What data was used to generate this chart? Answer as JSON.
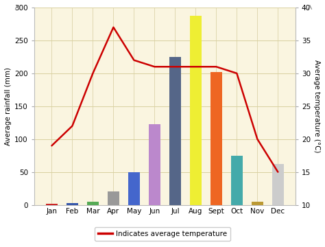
{
  "months": [
    "Jan",
    "Feb",
    "Mar",
    "Apr",
    "May",
    "Jun",
    "Jul",
    "Aug",
    "Sept",
    "Oct",
    "Nov",
    "Dec"
  ],
  "rainfall": [
    2,
    3,
    5,
    20,
    50,
    123,
    225,
    287,
    202,
    75,
    5,
    62
  ],
  "bar_colors": [
    "#cc2222",
    "#3355aa",
    "#55aa55",
    "#999999",
    "#4466cc",
    "#bb88cc",
    "#556688",
    "#eeee33",
    "#ee6622",
    "#44aaaa",
    "#bb9933",
    "#cccccc"
  ],
  "temperature": [
    19,
    22,
    30,
    37,
    32,
    31,
    31,
    31,
    31,
    30,
    20,
    15
  ],
  "temp_color": "#cc0000",
  "bg_color": "#faf5e0",
  "grid_color_h": "#d8d0a0",
  "grid_color_v": "#e0d8b0",
  "ylabel_left": "Average rainfall (mm)",
  "ylabel_right": "Average temperature (°C)",
  "ylim_left": [
    0,
    300
  ],
  "ylim_right": [
    10,
    40
  ],
  "yticks_left": [
    0,
    50,
    100,
    150,
    200,
    250,
    300
  ],
  "yticks_right": [
    10,
    15,
    20,
    25,
    30,
    35,
    40
  ],
  "legend_label": "Indicates average temperature",
  "axis_fontsize": 7.5,
  "tick_fontsize": 7.5
}
